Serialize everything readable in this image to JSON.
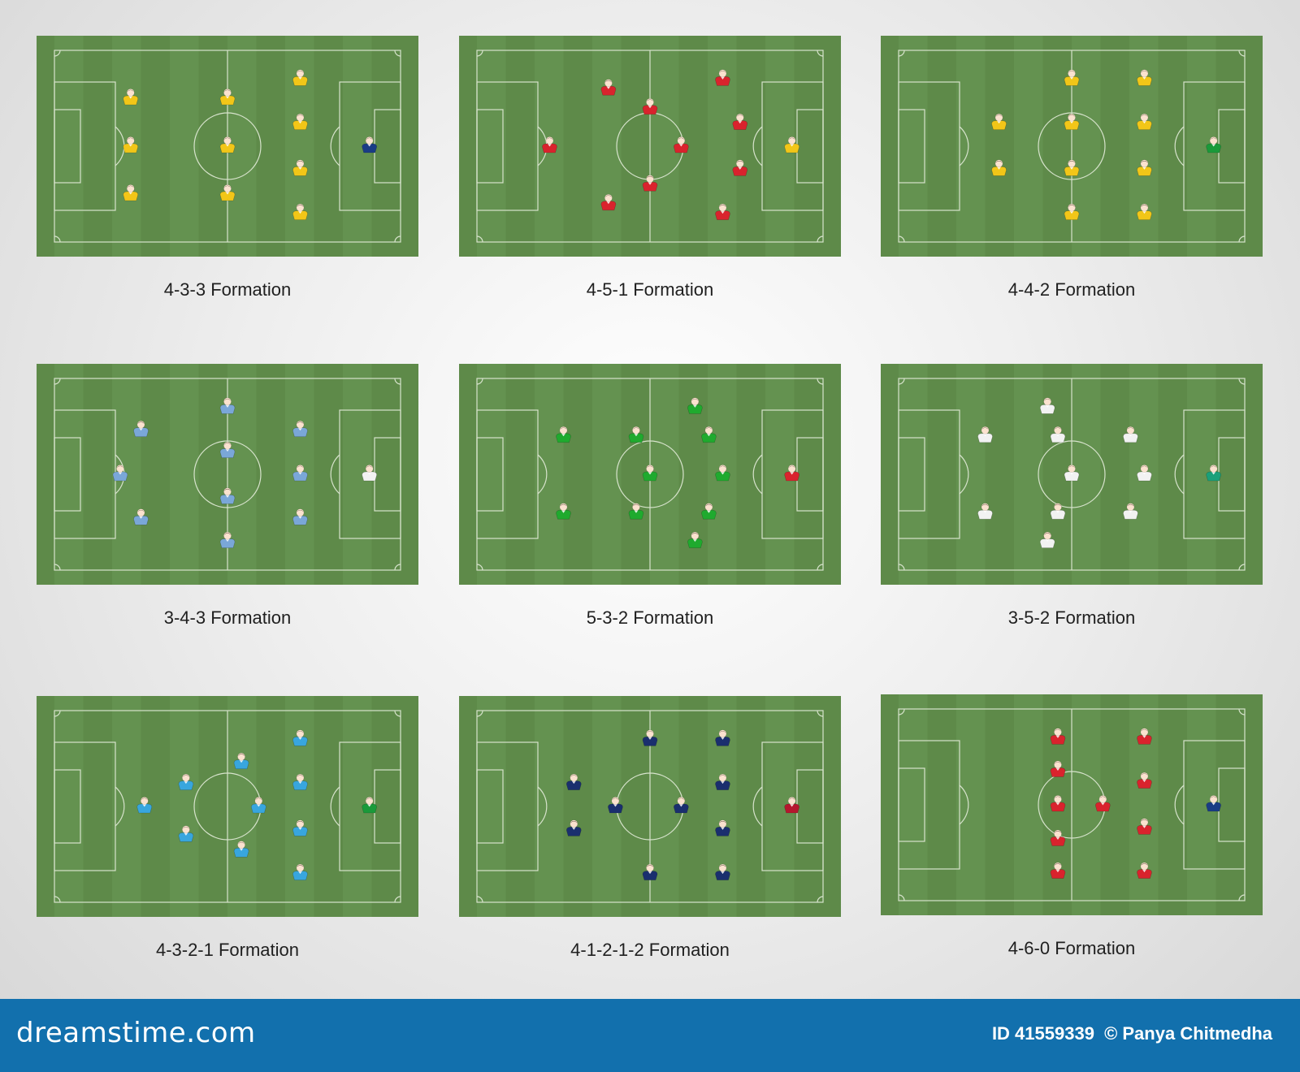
{
  "pitch_colors": {
    "grass": "#5e8a49",
    "stripe": "#649250",
    "line": "#d7e3cc"
  },
  "formations": [
    {
      "title": "4-3-3 Formation",
      "color": "#f2c618",
      "gk_color": "#1a3c85",
      "outfield": [
        [
          0.22,
          0.25
        ],
        [
          0.22,
          0.5
        ],
        [
          0.22,
          0.75
        ],
        [
          0.5,
          0.25
        ],
        [
          0.5,
          0.5
        ],
        [
          0.5,
          0.75
        ],
        [
          0.71,
          0.15
        ],
        [
          0.71,
          0.38
        ],
        [
          0.71,
          0.62
        ],
        [
          0.71,
          0.85
        ]
      ]
    },
    {
      "title": "4-5-1 Formation",
      "color": "#d9232d",
      "gk_color": "#f2c618",
      "outfield": [
        [
          0.21,
          0.5
        ],
        [
          0.38,
          0.2
        ],
        [
          0.38,
          0.8
        ],
        [
          0.5,
          0.3
        ],
        [
          0.5,
          0.7
        ],
        [
          0.59,
          0.5
        ],
        [
          0.71,
          0.15
        ],
        [
          0.71,
          0.85
        ],
        [
          0.76,
          0.38
        ],
        [
          0.76,
          0.62
        ]
      ]
    },
    {
      "title": "4-4-2 Formation",
      "color": "#f2c618",
      "gk_color": "#1a9a3a",
      "outfield": [
        [
          0.29,
          0.38
        ],
        [
          0.29,
          0.62
        ],
        [
          0.5,
          0.15
        ],
        [
          0.5,
          0.38
        ],
        [
          0.5,
          0.62
        ],
        [
          0.5,
          0.85
        ],
        [
          0.71,
          0.15
        ],
        [
          0.71,
          0.38
        ],
        [
          0.71,
          0.62
        ],
        [
          0.71,
          0.85
        ]
      ]
    },
    {
      "title": "3-4-3 Formation",
      "color": "#7aa7d8",
      "gk_color": "#f2f2f2",
      "outfield": [
        [
          0.19,
          0.5
        ],
        [
          0.25,
          0.27
        ],
        [
          0.25,
          0.73
        ],
        [
          0.5,
          0.15
        ],
        [
          0.5,
          0.38
        ],
        [
          0.5,
          0.62
        ],
        [
          0.5,
          0.85
        ],
        [
          0.71,
          0.27
        ],
        [
          0.71,
          0.5
        ],
        [
          0.71,
          0.73
        ]
      ]
    },
    {
      "title": "5-3-2 Formation",
      "color": "#1faa2e",
      "gk_color": "#d9232d",
      "outfield": [
        [
          0.25,
          0.3
        ],
        [
          0.25,
          0.7
        ],
        [
          0.46,
          0.3
        ],
        [
          0.46,
          0.7
        ],
        [
          0.5,
          0.5
        ],
        [
          0.63,
          0.15
        ],
        [
          0.63,
          0.85
        ],
        [
          0.67,
          0.3
        ],
        [
          0.67,
          0.7
        ],
        [
          0.71,
          0.5
        ]
      ]
    },
    {
      "title": "3-5-2 Formation",
      "color": "#f2f2f2",
      "gk_color": "#1aa07a",
      "outfield": [
        [
          0.25,
          0.3
        ],
        [
          0.25,
          0.7
        ],
        [
          0.43,
          0.15
        ],
        [
          0.43,
          0.85
        ],
        [
          0.46,
          0.3
        ],
        [
          0.46,
          0.7
        ],
        [
          0.5,
          0.5
        ],
        [
          0.67,
          0.3
        ],
        [
          0.67,
          0.7
        ],
        [
          0.71,
          0.5
        ]
      ]
    },
    {
      "title": "4-3-2-1 Formation",
      "color": "#38a6de",
      "gk_color": "#1a9a3a",
      "outfield": [
        [
          0.26,
          0.5
        ],
        [
          0.38,
          0.38
        ],
        [
          0.38,
          0.65
        ],
        [
          0.54,
          0.27
        ],
        [
          0.54,
          0.73
        ],
        [
          0.59,
          0.5
        ],
        [
          0.71,
          0.15
        ],
        [
          0.71,
          0.38
        ],
        [
          0.71,
          0.62
        ],
        [
          0.71,
          0.85
        ]
      ]
    },
    {
      "title": "4-1-2-1-2 Formation",
      "color": "#1a2f6e",
      "gk_color": "#b5172e",
      "outfield": [
        [
          0.28,
          0.38
        ],
        [
          0.28,
          0.62
        ],
        [
          0.4,
          0.5
        ],
        [
          0.5,
          0.15
        ],
        [
          0.5,
          0.85
        ],
        [
          0.59,
          0.5
        ],
        [
          0.71,
          0.15
        ],
        [
          0.71,
          0.38
        ],
        [
          0.71,
          0.62
        ],
        [
          0.71,
          0.85
        ]
      ]
    },
    {
      "title": "4-6-0 Formation",
      "color": "#d9232d",
      "gk_color": "#1a3c85",
      "outfield": [
        [
          0.46,
          0.15
        ],
        [
          0.46,
          0.32
        ],
        [
          0.46,
          0.5
        ],
        [
          0.46,
          0.68
        ],
        [
          0.46,
          0.85
        ],
        [
          0.59,
          0.5
        ],
        [
          0.71,
          0.15
        ],
        [
          0.71,
          0.38
        ],
        [
          0.71,
          0.62
        ],
        [
          0.71,
          0.85
        ]
      ]
    }
  ],
  "footer": {
    "brand": "dreamstime.com",
    "id_label": "ID 41559339",
    "credit": "© Panya Chitmedha"
  }
}
